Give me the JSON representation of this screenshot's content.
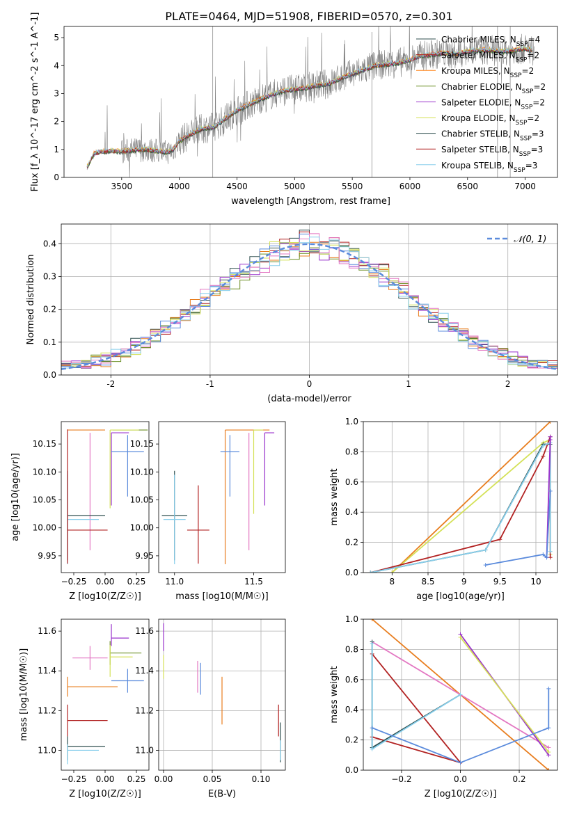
{
  "figure_title": "PLATE=0464, MJD=51908, FIBERID=0570, z=0.301",
  "colors": {
    "data": "#808080",
    "Chabrier MILES": "#2f4f4f",
    "Salpeter MILES": "#b22222",
    "Kroupa MILES": "#ff7f0e",
    "Chabrier ELODIE": "#6b8e23",
    "Salpeter ELODIE": "#9932cc",
    "Kroupa ELODIE": "#d4e157",
    "Chabrier STELIB": "#2f4f4f",
    "Salpeter STELIB": "#b22222",
    "Kroupa STELIB": "#87ceeb",
    "pink": "#e377c2",
    "blue": "#5b8bdc",
    "orange": "#e87d1e"
  },
  "chart_data": [
    {
      "id": "spectrum",
      "type": "line",
      "xlabel": "wavelength [Angstrom, rest frame]",
      "ylabel": "Flux [f_λ 10^-17 erg cm^-2 s^-1 A^-1]",
      "xlim": [
        3000,
        7280
      ],
      "ylim": [
        0,
        5.4
      ],
      "xticks": [
        3500,
        4000,
        4500,
        5000,
        5500,
        6000,
        6500,
        7000
      ],
      "yticks": [
        0,
        1,
        2,
        3,
        4,
        5
      ],
      "grid": false,
      "legend_placement": "upper right",
      "legend": [
        {
          "label": "Chabrier MILES, N_SSP=4",
          "name": "Chabrier MILES",
          "n": 4
        },
        {
          "label": "Salpeter MILES, N_SSP=2",
          "name": "Salpeter MILES",
          "n": 2
        },
        {
          "label": "Kroupa MILES, N_SSP=2",
          "name": "Kroupa MILES",
          "n": 2
        },
        {
          "label": "Chabrier ELODIE, N_SSP=2",
          "name": "Chabrier ELODIE",
          "n": 2
        },
        {
          "label": "Salpeter ELODIE, N_SSP=2",
          "name": "Salpeter ELODIE",
          "n": 2
        },
        {
          "label": "Kroupa ELODIE, N_SSP=2",
          "name": "Kroupa ELODIE",
          "n": 2
        },
        {
          "label": "Chabrier STELIB, N_SSP=3",
          "name": "Chabrier STELIB",
          "n": 3
        },
        {
          "label": "Salpeter STELIB, N_SSP=3",
          "name": "Salpeter STELIB",
          "n": 3
        },
        {
          "label": "Kroupa STELIB, N_SSP=3",
          "name": "Kroupa STELIB",
          "n": 3
        }
      ],
      "continuum": {
        "x": [
          3200,
          3260,
          3300,
          3400,
          3500,
          3600,
          3700,
          3800,
          3900,
          3950,
          4000,
          4100,
          4200,
          4300,
          4400,
          4500,
          4600,
          4700,
          4800,
          4900,
          5000,
          5100,
          5200,
          5300,
          5400,
          5500,
          5600,
          5700,
          5800,
          5900,
          6000,
          6100,
          6200,
          6300,
          6400,
          6500,
          6600,
          6700,
          6800,
          6900,
          7000,
          7060
        ],
        "y": [
          0.35,
          0.85,
          0.9,
          0.95,
          0.92,
          0.98,
          1.0,
          0.95,
          0.9,
          1.0,
          1.3,
          1.55,
          1.75,
          1.8,
          2.1,
          2.4,
          2.6,
          2.8,
          2.95,
          3.1,
          3.15,
          3.2,
          3.3,
          3.35,
          3.55,
          3.7,
          3.85,
          4.0,
          4.05,
          4.1,
          4.2,
          4.35,
          4.4,
          4.45,
          4.4,
          4.5,
          4.55,
          4.55,
          4.5,
          4.55,
          4.6,
          4.55
        ]
      },
      "data_range": [
        3200,
        7080
      ]
    },
    {
      "id": "residuals",
      "type": "histogram",
      "xlabel": "(data-model)/error",
      "ylabel": "Normed distribution",
      "xlim": [
        -2.5,
        2.5
      ],
      "ylim": [
        0,
        0.46
      ],
      "xticks": [
        -2,
        -1,
        0,
        1,
        2
      ],
      "yticks": [
        0.0,
        0.1,
        0.2,
        0.3,
        0.4
      ],
      "grid": true,
      "legend_placement": "upper right",
      "gaussian_label": "𝒩(0, 1)",
      "bin_width": 0.1
    },
    {
      "id": "age-vs-Z",
      "type": "errorbar",
      "xlabel": "Z [log10(Z/Z☉)]",
      "ylabel": "age  [log10(age/yr)]",
      "xlim": [
        -0.35,
        0.35
      ],
      "ylim": [
        9.92,
        10.19
      ],
      "xticks": [
        -0.25,
        0.0,
        0.25
      ],
      "xtick_labels": [
        "−0.25",
        "0.00",
        "0.25"
      ],
      "yticks": [
        9.95,
        10.0,
        10.05,
        10.1,
        10.15
      ],
      "grid": false,
      "points": [
        {
          "c": "orange",
          "x": -0.3,
          "xerr": [
            0,
            0.3
          ],
          "y": 10.175,
          "yerr": [
            0,
            0
          ]
        },
        {
          "c": "olive",
          "x": 0.06,
          "xerr": [
            0,
            0.28
          ],
          "y": 10.175,
          "yerr": [
            0,
            0
          ]
        },
        {
          "c": "lime",
          "x": 0.04,
          "xerr": [
            0,
            0.23
          ],
          "y": 10.175,
          "yerr": [
            0.14,
            0
          ]
        },
        {
          "c": "purple",
          "x": 0.05,
          "xerr": [
            0,
            0.14
          ],
          "y": 10.17,
          "yerr": [
            0.13,
            0
          ]
        },
        {
          "c": "blue",
          "x": 0.18,
          "xerr": [
            0.13,
            0.13
          ],
          "y": 10.136,
          "yerr": [
            0.08,
            0.03
          ]
        },
        {
          "c": "pink",
          "x": -0.12,
          "xerr": [
            0,
            0
          ],
          "y": 10.07,
          "yerr": [
            0.11,
            0.1
          ]
        },
        {
          "c": "darkslate",
          "x": -0.3,
          "xerr": [
            0,
            0.3
          ],
          "y": 10.022,
          "yerr": [
            0.08,
            0.08
          ]
        },
        {
          "c": "sky",
          "x": -0.3,
          "xerr": [
            0,
            0.25
          ],
          "y": 10.015,
          "yerr": [
            0.08,
            0.08
          ]
        },
        {
          "c": "red",
          "x": -0.3,
          "xerr": [
            0,
            0.32
          ],
          "y": 9.996,
          "yerr": [
            0.06,
            0.18
          ]
        }
      ]
    },
    {
      "id": "age-vs-mass",
      "type": "errorbar",
      "xlabel": "mass [log10(M/M☉)]",
      "ylabel": "",
      "xlim": [
        10.9,
        11.7
      ],
      "ylim": [
        9.92,
        10.19
      ],
      "xticks": [
        11.0,
        11.5
      ],
      "xtick_labels": [
        "11.0",
        "11.5"
      ],
      "yticks": [
        9.95,
        10.0,
        10.05,
        10.1,
        10.15
      ],
      "grid": false,
      "points": [
        {
          "c": "orange",
          "x": 11.32,
          "xerr": [
            0,
            0.28
          ],
          "y": 10.175,
          "yerr": [
            0.24,
            0
          ]
        },
        {
          "c": "lime",
          "x": 11.5,
          "xerr": [
            0,
            0.06
          ],
          "y": 10.175,
          "yerr": [
            0.15,
            0
          ]
        },
        {
          "c": "purple",
          "x": 11.57,
          "xerr": [
            0,
            0.06
          ],
          "y": 10.17,
          "yerr": [
            0.13,
            0
          ]
        },
        {
          "c": "blue",
          "x": 11.35,
          "xerr": [
            0.06,
            0.06
          ],
          "y": 10.136,
          "yerr": [
            0.08,
            0.03
          ]
        },
        {
          "c": "pink",
          "x": 11.47,
          "xerr": [
            0,
            0
          ],
          "y": 10.07,
          "yerr": [
            0.11,
            0.1
          ]
        },
        {
          "c": "darkslate",
          "x": 11.0,
          "xerr": [
            0.08,
            0.08
          ],
          "y": 10.022,
          "yerr": [
            0.08,
            0.08
          ]
        },
        {
          "c": "sky",
          "x": 11.0,
          "xerr": [
            0.07,
            0.07
          ],
          "y": 10.015,
          "yerr": [
            0.08,
            0.08
          ]
        },
        {
          "c": "red",
          "x": 11.15,
          "xerr": [
            0.07,
            0.07
          ],
          "y": 9.996,
          "yerr": [
            0.06,
            0.08
          ]
        }
      ]
    },
    {
      "id": "weight-vs-age",
      "type": "line",
      "xlabel": "age  [log10(age/yr)]",
      "ylabel": "mass weight",
      "xlim": [
        7.6,
        10.3
      ],
      "ylim": [
        0,
        1.0
      ],
      "xticks": [
        8.0,
        8.5,
        9.0,
        9.5,
        10.0
      ],
      "yticks": [
        0.0,
        0.2,
        0.4,
        0.6,
        0.8,
        1.0
      ],
      "grid": true,
      "series": [
        {
          "c": "orange",
          "x": [
            8.0,
            10.2
          ],
          "y": [
            0.0,
            1.0
          ]
        },
        {
          "c": "lime",
          "x": [
            8.0,
            10.1,
            10.2,
            10.2
          ],
          "y": [
            0.0,
            0.86,
            0.88,
            0.12
          ]
        },
        {
          "c": "red",
          "x": [
            7.7,
            9.5,
            10.1,
            10.2,
            10.2
          ],
          "y": [
            0.0,
            0.22,
            0.77,
            0.9,
            0.1
          ]
        },
        {
          "c": "darkslate",
          "x": [
            7.7,
            9.3,
            10.1,
            10.2
          ],
          "y": [
            0.0,
            0.15,
            0.85,
            0.85
          ]
        },
        {
          "c": "sky",
          "x": [
            7.7,
            9.3,
            10.1,
            10.2,
            10.2
          ],
          "y": [
            0.0,
            0.15,
            0.84,
            0.86,
            0.14
          ]
        },
        {
          "c": "purple",
          "x": [
            10.2,
            10.15,
            10.2
          ],
          "y": [
            0.9,
            0.1,
            0.88
          ]
        },
        {
          "c": "blue",
          "x": [
            9.3,
            10.1,
            10.15,
            10.2
          ],
          "y": [
            0.05,
            0.12,
            0.1,
            0.54
          ]
        }
      ]
    },
    {
      "id": "mass-vs-Z",
      "type": "errorbar",
      "xlabel": "Z [log10(Z/Z☉)]",
      "ylabel": "mass [log10(M/M☉)]",
      "xlim": [
        -0.35,
        0.35
      ],
      "ylim": [
        10.9,
        11.66
      ],
      "xticks": [
        -0.25,
        0.0,
        0.25
      ],
      "xtick_labels": [
        "−0.25",
        "0.00",
        "0.25"
      ],
      "yticks": [
        11.0,
        11.2,
        11.4,
        11.6
      ],
      "grid": false,
      "points": [
        {
          "c": "purple",
          "x": 0.05,
          "xerr": [
            0,
            0.14
          ],
          "y": 11.565,
          "yerr": [
            0.04,
            0.07
          ]
        },
        {
          "c": "olive",
          "x": 0.04,
          "xerr": [
            0,
            0.25
          ],
          "y": 11.49,
          "yerr": [
            0.06,
            0.06
          ]
        },
        {
          "c": "lime",
          "x": 0.04,
          "xerr": [
            0,
            0.18
          ],
          "y": 11.47,
          "yerr": [
            0.1,
            0.06
          ]
        },
        {
          "c": "pink",
          "x": -0.12,
          "xerr": [
            0.14,
            0.14
          ],
          "y": 11.465,
          "yerr": [
            0.06,
            0.06
          ]
        },
        {
          "c": "blue",
          "x": 0.18,
          "xerr": [
            0.13,
            0.13
          ],
          "y": 11.35,
          "yerr": [
            0.06,
            0.06
          ]
        },
        {
          "c": "orange",
          "x": -0.3,
          "xerr": [
            0,
            0.4
          ],
          "y": 11.32,
          "yerr": [
            0.05,
            0.05
          ]
        },
        {
          "c": "red",
          "x": -0.3,
          "xerr": [
            0,
            0.32
          ],
          "y": 11.15,
          "yerr": [
            0.08,
            0.08
          ]
        },
        {
          "c": "darkslate",
          "x": -0.3,
          "xerr": [
            0,
            0.3
          ],
          "y": 11.02,
          "yerr": [
            0.07,
            0.05
          ]
        },
        {
          "c": "sky",
          "x": -0.3,
          "xerr": [
            0,
            0.25
          ],
          "y": 11.0,
          "yerr": [
            0.07,
            0.03
          ]
        }
      ]
    },
    {
      "id": "mass-vs-ebv",
      "type": "errorbar",
      "xlabel": "E(B-V)",
      "ylabel": "",
      "xlim": [
        -0.005,
        0.125
      ],
      "ylim": [
        10.9,
        11.66
      ],
      "xticks": [
        0.0,
        0.05,
        0.1
      ],
      "xtick_labels": [
        "0.00",
        "0.05",
        "0.10"
      ],
      "yticks": [
        11.0,
        11.2,
        11.4,
        11.6
      ],
      "grid": true,
      "points": [
        {
          "c": "purple",
          "x": 0.0,
          "xerr": [
            0,
            0
          ],
          "y": 11.57,
          "yerr": [
            0.07,
            0.07
          ]
        },
        {
          "c": "lime",
          "x": 0.0,
          "xerr": [
            0,
            0
          ],
          "y": 11.42,
          "yerr": [
            0.06,
            0.06
          ]
        },
        {
          "c": "pink",
          "x": 0.035,
          "xerr": [
            0,
            0
          ],
          "y": 11.37,
          "yerr": [
            0.08,
            0.08
          ]
        },
        {
          "c": "blue",
          "x": 0.038,
          "xerr": [
            0,
            0
          ],
          "y": 11.36,
          "yerr": [
            0.08,
            0.08
          ]
        },
        {
          "c": "orange",
          "x": 0.06,
          "xerr": [
            0,
            0
          ],
          "y": 11.25,
          "yerr": [
            0.12,
            0.12
          ]
        },
        {
          "c": "red",
          "x": 0.118,
          "xerr": [
            0,
            0
          ],
          "y": 11.15,
          "yerr": [
            0.08,
            0.08
          ]
        },
        {
          "c": "darkslate",
          "x": 0.12,
          "xerr": [
            0,
            0
          ],
          "y": 11.04,
          "yerr": [
            0.1,
            0.1
          ]
        },
        {
          "c": "sky",
          "x": 0.12,
          "xerr": [
            0,
            0
          ],
          "y": 11.0,
          "yerr": [
            0.05,
            0.05
          ]
        }
      ]
    },
    {
      "id": "weight-vs-Z",
      "type": "line",
      "xlabel": "Z [log10(Z/Z☉)]",
      "ylabel": "mass weight",
      "xlim": [
        -0.33,
        0.33
      ],
      "ylim": [
        0,
        1.0
      ],
      "xticks": [
        -0.2,
        0.0,
        0.2
      ],
      "xtick_labels": [
        "−0.2",
        "0.0",
        "0.2"
      ],
      "yticks": [
        0.0,
        0.2,
        0.4,
        0.6,
        0.8,
        1.0
      ],
      "grid": true,
      "series": [
        {
          "c": "orange",
          "x": [
            -0.3,
            0.3
          ],
          "y": [
            1.0,
            0.0
          ]
        },
        {
          "c": "pink",
          "x": [
            -0.3,
            0.3
          ],
          "y": [
            0.85,
            0.15
          ]
        },
        {
          "c": "red",
          "x": [
            -0.3,
            0.0,
            -0.3
          ],
          "y": [
            0.77,
            0.05,
            0.22
          ]
        },
        {
          "c": "darkslate",
          "x": [
            -0.3,
            -0.3,
            0.0
          ],
          "y": [
            0.85,
            0.15,
            0.5
          ]
        },
        {
          "c": "sky",
          "x": [
            -0.3,
            -0.3,
            0.0
          ],
          "y": [
            0.84,
            0.14,
            0.5
          ]
        },
        {
          "c": "purple",
          "x": [
            0.0,
            0.3
          ],
          "y": [
            0.9,
            0.1
          ]
        },
        {
          "c": "lime",
          "x": [
            0.0,
            0.3
          ],
          "y": [
            0.88,
            0.12
          ]
        },
        {
          "c": "blue",
          "x": [
            -0.3,
            0.0,
            0.3,
            0.3
          ],
          "y": [
            0.28,
            0.05,
            0.28,
            0.54
          ]
        }
      ]
    }
  ]
}
